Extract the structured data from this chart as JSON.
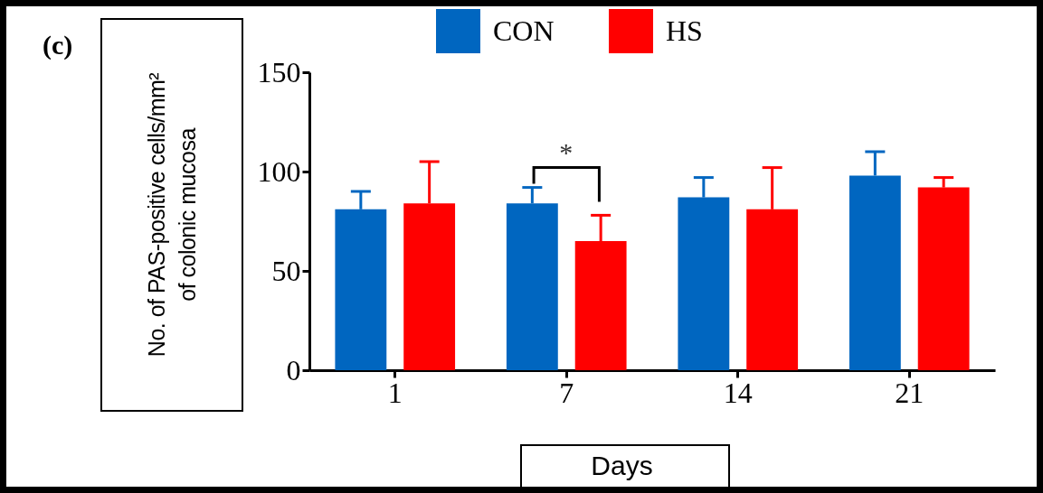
{
  "chart_data": {
    "type": "bar",
    "ylabel": "No. of PAS-positive cells/mm²\nof colonic mucosa",
    "xlabel": "Days",
    "categories": [
      "1",
      "7",
      "14",
      "21"
    ],
    "series": [
      {
        "name": "CON",
        "color": "#0066c0",
        "values": [
          81,
          84,
          87,
          98
        ],
        "errors": [
          [
            81,
            90
          ],
          [
            84,
            92
          ],
          [
            87,
            97
          ],
          [
            98,
            110
          ]
        ]
      },
      {
        "name": "HS",
        "color": "#ff0000",
        "values": [
          84,
          65,
          81,
          92
        ],
        "errors": [
          [
            84,
            105
          ],
          [
            65,
            78
          ],
          [
            81,
            102
          ],
          [
            92,
            97
          ]
        ]
      }
    ],
    "ylim": [
      0,
      150
    ],
    "yticks": [
      0,
      50,
      100,
      150
    ],
    "legend": "top",
    "grid": false,
    "annotations": [
      "(c)",
      "*"
    ]
  }
}
